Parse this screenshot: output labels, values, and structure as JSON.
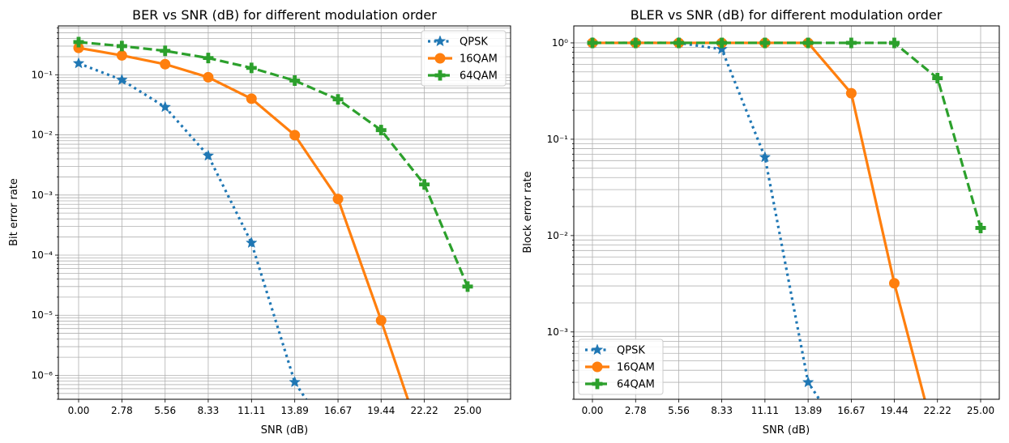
{
  "chart_data": [
    {
      "type": "line",
      "title": "BER vs SNR (dB) for different modulation order",
      "xlabel": "SNR (dB)",
      "ylabel": "Bit error rate",
      "yscale": "log",
      "grid": "both",
      "legend_position": "upper right",
      "x": [
        0.0,
        2.78,
        5.56,
        8.33,
        11.11,
        13.89,
        16.67,
        19.44,
        22.22,
        25.0
      ],
      "xticks": [
        "0.00",
        "2.78",
        "5.56",
        "8.33",
        "11.11",
        "13.89",
        "16.67",
        "19.44",
        "22.22",
        "25.00"
      ],
      "ylim": [
        4e-07,
        0.65
      ],
      "series": [
        {
          "name": "QPSK",
          "color": "#1f77b4",
          "linestyle": "dotted",
          "marker": "star",
          "values": [
            0.155,
            0.082,
            0.029,
            0.0045,
            0.00016,
            7.7e-07,
            0,
            null,
            null,
            null
          ]
        },
        {
          "name": "16QAM",
          "color": "#ff7f0e",
          "linestyle": "solid",
          "marker": "circle",
          "values": [
            0.28,
            0.21,
            0.15,
            0.091,
            0.04,
            0.0099,
            0.00086,
            8.2e-06,
            0,
            null
          ]
        },
        {
          "name": "64QAM",
          "color": "#2ca02c",
          "linestyle": "dashed",
          "marker": "plus",
          "values": [
            0.35,
            0.3,
            0.25,
            0.19,
            0.13,
            0.08,
            0.039,
            0.012,
            0.0015,
            3e-05
          ]
        }
      ]
    },
    {
      "type": "line",
      "title": "BLER vs SNR (dB) for different modulation order",
      "xlabel": "SNR (dB)",
      "ylabel": "Block error rate",
      "yscale": "log",
      "grid": "both",
      "legend_position": "lower left",
      "x": [
        0.0,
        2.78,
        5.56,
        8.33,
        11.11,
        13.89,
        16.67,
        19.44,
        22.22,
        25.0
      ],
      "xticks": [
        "0.00",
        "2.78",
        "5.56",
        "8.33",
        "11.11",
        "13.89",
        "16.67",
        "19.44",
        "22.22",
        "25.00"
      ],
      "ylim": [
        0.0002,
        1.5
      ],
      "series": [
        {
          "name": "QPSK",
          "color": "#1f77b4",
          "linestyle": "dotted",
          "marker": "star",
          "values": [
            1.0,
            1.0,
            1.0,
            0.86,
            0.065,
            0.0003,
            0,
            null,
            null,
            null
          ]
        },
        {
          "name": "16QAM",
          "color": "#ff7f0e",
          "linestyle": "solid",
          "marker": "circle",
          "values": [
            1.0,
            1.0,
            1.0,
            1.0,
            1.0,
            1.0,
            0.3,
            0.0032,
            0,
            null
          ]
        },
        {
          "name": "64QAM",
          "color": "#2ca02c",
          "linestyle": "dashed",
          "marker": "plus",
          "values": [
            1.0,
            1.0,
            1.0,
            1.0,
            1.0,
            1.0,
            1.0,
            1.0,
            0.43,
            0.012
          ]
        }
      ]
    }
  ]
}
